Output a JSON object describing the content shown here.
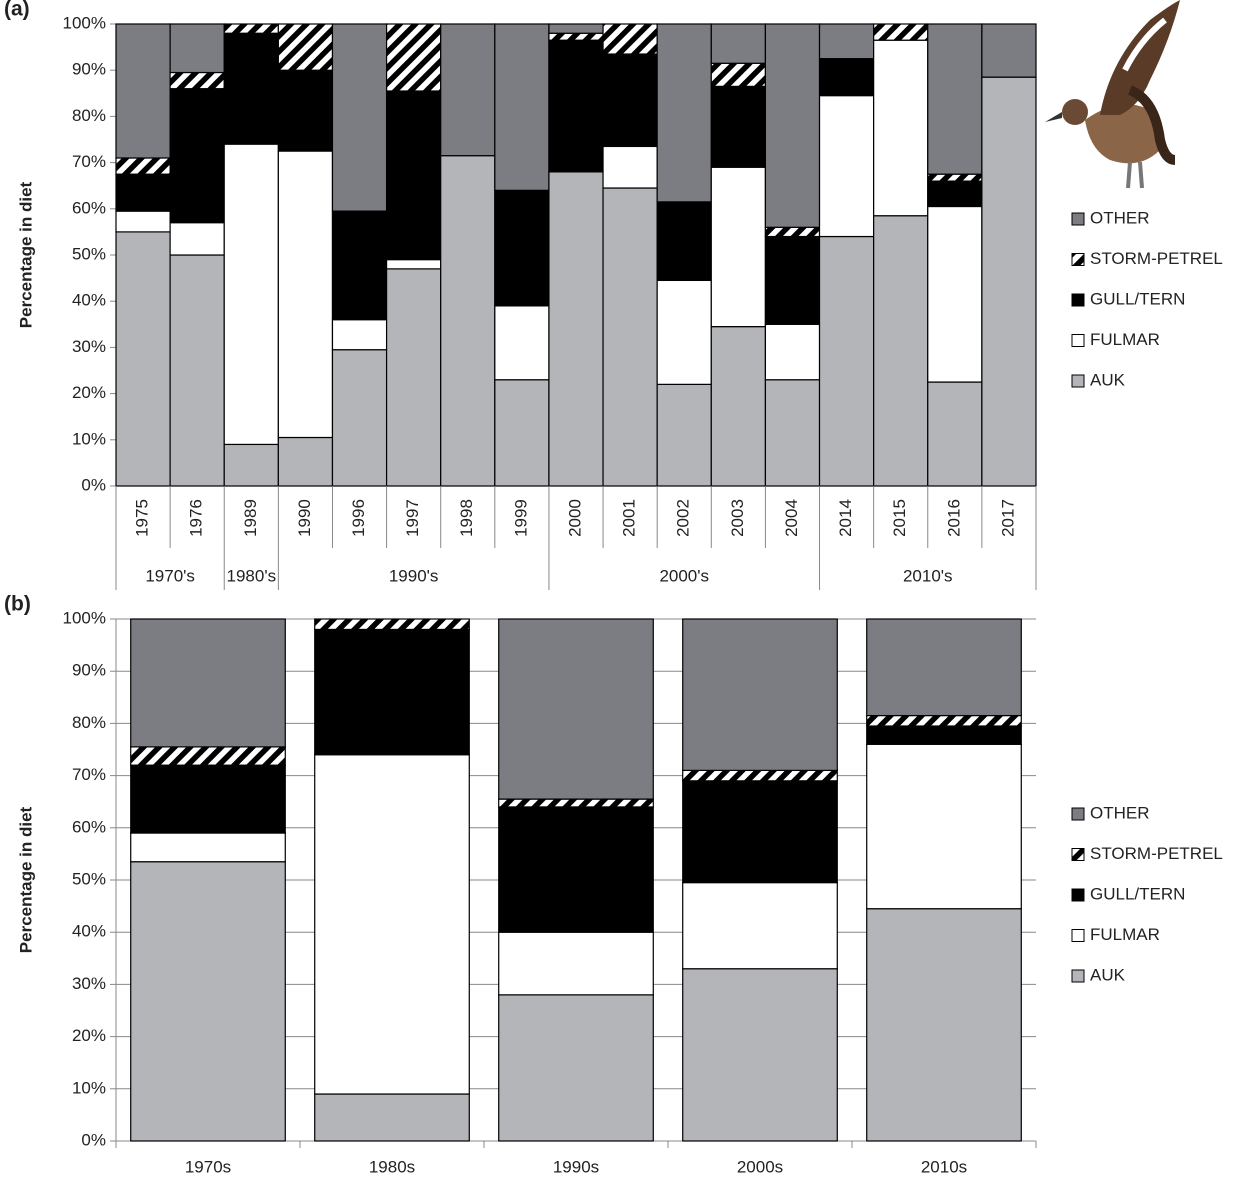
{
  "chart_data": [
    {
      "type": "stacked_bar",
      "panel_label": "(a)",
      "y_label": "Percentage in diet",
      "categories": [
        "1975",
        "1976",
        "1989",
        "1990",
        "1996",
        "1997",
        "1998",
        "1999",
        "2000",
        "2001",
        "2002",
        "2003",
        "2004",
        "2014",
        "2015",
        "2016",
        "2017"
      ],
      "category_groups": [
        "1970's",
        "1970's",
        "1980's",
        "1990's",
        "1990's",
        "1990's",
        "1990's",
        "1990's",
        "2000's",
        "2000's",
        "2000's",
        "2000's",
        "2000's",
        "2010's",
        "2010's",
        "2010's",
        "2010's"
      ],
      "ylim": [
        0,
        100
      ],
      "yticks": [
        {
          "value": 0,
          "label": "0%"
        },
        {
          "value": 10,
          "label": "10%"
        },
        {
          "value": 20,
          "label": "20%"
        },
        {
          "value": 30,
          "label": "30%"
        },
        {
          "value": 40,
          "label": "40%"
        },
        {
          "value": 50,
          "label": "50%"
        },
        {
          "value": 60,
          "label": "60%"
        },
        {
          "value": 70,
          "label": "70%"
        },
        {
          "value": 80,
          "label": "80%"
        },
        {
          "value": 90,
          "label": "90%"
        },
        {
          "value": 100,
          "label": "100%"
        }
      ],
      "grid": true,
      "series": [
        {
          "name": "AUK",
          "color": "#b4b5b9",
          "values": [
            55,
            50,
            9,
            10.5,
            29.5,
            47,
            71.5,
            23,
            68,
            64.5,
            22,
            34.5,
            23,
            54,
            58.5,
            22.5,
            88.5
          ]
        },
        {
          "name": "FULMAR",
          "color": "#ffffff",
          "values": [
            4.5,
            7,
            65,
            62,
            6.5,
            2,
            0,
            16,
            0,
            9,
            22.5,
            34.5,
            12,
            30.5,
            38,
            38,
            0
          ]
        },
        {
          "name": "GULL/TERN",
          "color": "#000000",
          "values": [
            8,
            29,
            24,
            17.5,
            23.5,
            36.5,
            0,
            25,
            28.5,
            20,
            17,
            17.5,
            19,
            8,
            0,
            5.5,
            0
          ]
        },
        {
          "name": "STORM-PETREL",
          "color": "#000000",
          "hatch": true,
          "values": [
            3.5,
            3.5,
            2,
            10,
            0,
            14.5,
            0,
            0,
            1.5,
            6.5,
            0,
            5,
            2,
            0,
            3.5,
            1.5,
            0
          ]
        },
        {
          "name": "OTHER",
          "color": "#7c7d82",
          "values": [
            29,
            10.5,
            0,
            0,
            40.5,
            0,
            28.5,
            36,
            2,
            0,
            38.5,
            8.5,
            44,
            7.5,
            0,
            32.5,
            11.5
          ]
        }
      ]
    },
    {
      "type": "stacked_bar",
      "panel_label": "(b)",
      "y_label": "Percentage in diet",
      "categories": [
        "1970s",
        "1980s",
        "1990s",
        "2000s",
        "2010s"
      ],
      "ylim": [
        0,
        100
      ],
      "yticks": [
        {
          "value": 0,
          "label": "0%"
        },
        {
          "value": 10,
          "label": "10%"
        },
        {
          "value": 20,
          "label": "20%"
        },
        {
          "value": 30,
          "label": "30%"
        },
        {
          "value": 40,
          "label": "40%"
        },
        {
          "value": 50,
          "label": "50%"
        },
        {
          "value": 60,
          "label": "60%"
        },
        {
          "value": 70,
          "label": "70%"
        },
        {
          "value": 80,
          "label": "80%"
        },
        {
          "value": 90,
          "label": "90%"
        },
        {
          "value": 100,
          "label": "100%"
        }
      ],
      "grid": true,
      "series": [
        {
          "name": "AUK",
          "color": "#b4b5b9",
          "values": [
            53.5,
            9,
            28,
            33,
            44.5
          ]
        },
        {
          "name": "FULMAR",
          "color": "#ffffff",
          "values": [
            5.5,
            65,
            12,
            16.5,
            31.5
          ]
        },
        {
          "name": "GULL/TERN",
          "color": "#000000",
          "values": [
            13,
            24,
            24,
            19.5,
            3.5
          ]
        },
        {
          "name": "STORM-PETREL",
          "color": "#000000",
          "hatch": true,
          "values": [
            3.5,
            2,
            1.5,
            2,
            2
          ]
        },
        {
          "name": "OTHER",
          "color": "#7c7d82",
          "values": [
            24.5,
            0,
            34.5,
            29,
            18.5
          ]
        }
      ]
    }
  ]
}
